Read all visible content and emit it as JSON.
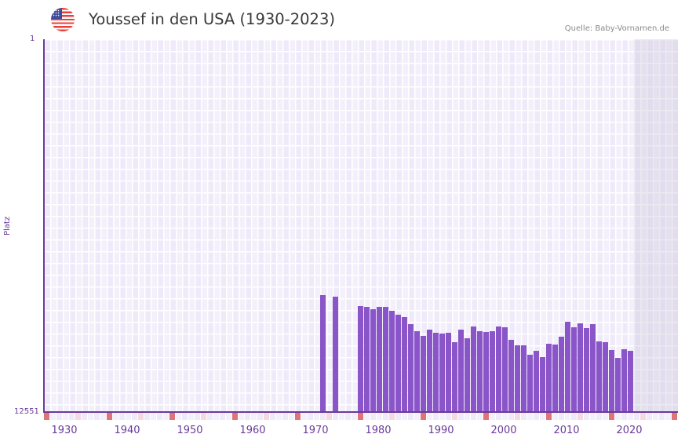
{
  "header": {
    "flag_icon": "us-flag-icon",
    "title": "Youssef in den USA (1930-2023)",
    "source": "Quelle: Baby-Vornamen.de"
  },
  "colors": {
    "bar": "#8a55c8",
    "axis": "#6a3a9a",
    "decade_marker": "#e07378",
    "half_decade_marker": "#f5d8e0",
    "grid_light": "#f3f0fb",
    "grid_dark": "#efeafa"
  },
  "axis": {
    "y_top_label": "1",
    "y_bottom_label": "12551",
    "y_title": "Platz"
  },
  "chart_data": {
    "type": "bar",
    "title": "Youssef in den USA (1930-2023)",
    "xlabel": "",
    "ylabel": "Platz",
    "ylim": [
      12551,
      1
    ],
    "y_inverted": true,
    "grid": true,
    "x_ticks": [
      "1930",
      "1940",
      "1950",
      "1960",
      "1970",
      "1980",
      "1990",
      "2000",
      "2010",
      "2020"
    ],
    "x_range": [
      1929,
      2029
    ],
    "shaded_future_from": 2023,
    "categories": [
      1973,
      1975,
      1979,
      1980,
      1981,
      1982,
      1983,
      1984,
      1985,
      1986,
      1987,
      1988,
      1989,
      1990,
      1991,
      1992,
      1993,
      1994,
      1995,
      1996,
      1997,
      1998,
      1999,
      2000,
      2001,
      2002,
      2003,
      2004,
      2005,
      2006,
      2007,
      2008,
      2009,
      2010,
      2011,
      2012,
      2013,
      2014,
      2015,
      2016,
      2017,
      2018,
      2019,
      2020,
      2021,
      2022
    ],
    "values": [
      8615,
      8667,
      8984,
      9011,
      9090,
      9011,
      9011,
      9143,
      9275,
      9354,
      9592,
      9830,
      9989,
      9777,
      9883,
      9909,
      9883,
      10200,
      9777,
      10068,
      9671,
      9830,
      9856,
      9830,
      9671,
      9698,
      10121,
      10306,
      10306,
      10623,
      10491,
      10702,
      10253,
      10279,
      10015,
      9513,
      9698,
      9566,
      9724,
      9592,
      10174,
      10200,
      10464,
      10728,
      10438,
      10491
    ],
    "source": "Quelle: Baby-Vornamen.de"
  }
}
